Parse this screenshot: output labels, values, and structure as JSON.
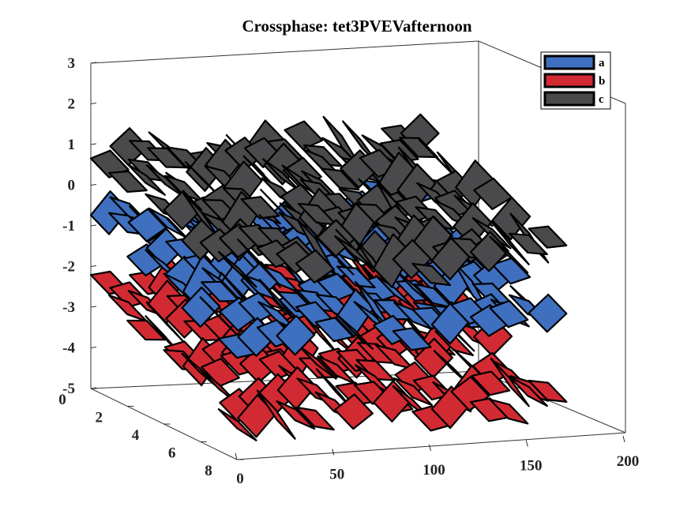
{
  "chart_data": {
    "type": "surface3d",
    "title": "Crossphase: tet3PVEVafternoon",
    "xlabel": "",
    "ylabel": "",
    "zlabel": "",
    "x_ticks": [
      "0",
      "50",
      "100",
      "150",
      "200"
    ],
    "y_ticks": [
      "0",
      "2",
      "4",
      "6",
      "8"
    ],
    "z_ticks": [
      "3",
      "2",
      "1",
      "0",
      "-1",
      "-2",
      "-3",
      "-4",
      "-5"
    ],
    "xlim": [
      0,
      200
    ],
    "ylim": [
      0,
      8
    ],
    "zlim": [
      -5,
      3
    ],
    "legend_position": "top-right",
    "series": [
      {
        "name": "a",
        "color": "#3F6FBF",
        "level_range": [
          -2.4,
          -0.6
        ]
      },
      {
        "name": "b",
        "color": "#D22A33",
        "level_range": [
          -4.6,
          -2.2
        ]
      },
      {
        "name": "c",
        "color": "#4A4A4C",
        "level_range": [
          -0.8,
          1.0
        ]
      }
    ]
  }
}
